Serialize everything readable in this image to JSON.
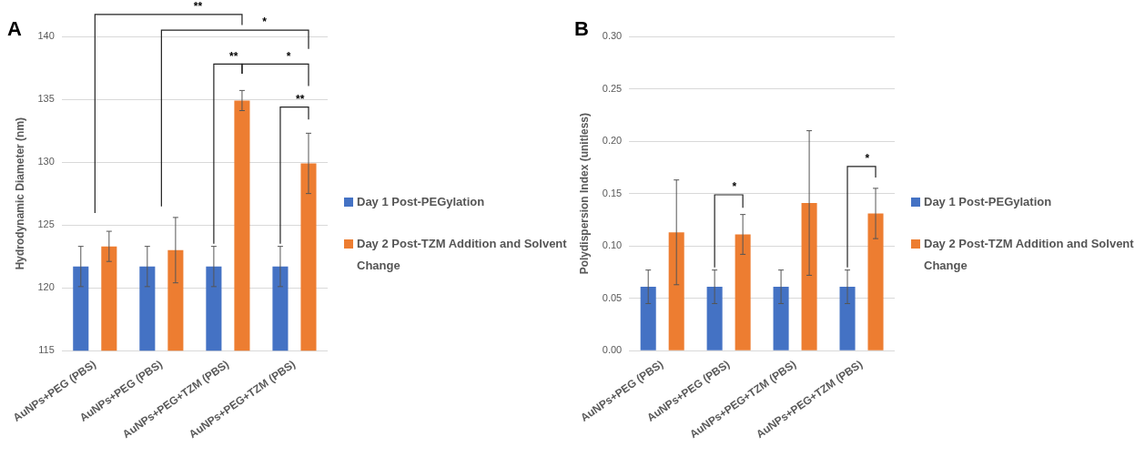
{
  "chart_data": [
    {
      "type": "bar",
      "title": "A",
      "ylabel": "Hydrodynamic Diameter (nm)",
      "categories": [
        "AuNPs+PEG (PBS)",
        "AuNPs+PEG (PBS)",
        "AuNPs+PEG+TZM (PBS)",
        "AuNPs+PEG+TZM (PBS)"
      ],
      "series": [
        {
          "name": "Day 1 Post-PEGylation",
          "color": "#4472c4",
          "values": [
            121.7,
            121.7,
            121.7,
            121.7
          ],
          "errors": [
            1.6,
            1.6,
            1.6,
            1.6
          ]
        },
        {
          "name": "Day 2 Post-TZM Addition and Solvent Change",
          "color": "#ed7d31",
          "values": [
            123.3,
            123.0,
            134.9,
            129.9
          ],
          "errors": [
            1.2,
            2.6,
            0.8,
            2.4
          ]
        }
      ],
      "ylim": [
        115,
        140
      ],
      "yticks": [
        115,
        120,
        125,
        130,
        135,
        140
      ],
      "grid": "y",
      "legend": "right",
      "annotations": [
        "**",
        "*",
        "**",
        "*",
        "**"
      ]
    },
    {
      "type": "bar",
      "title": "B",
      "ylabel": "Polydispersion Index (unitless)",
      "categories": [
        "AuNPs+PEG (PBS)",
        "AuNPs+PEG (PBS)",
        "AuNPs+PEG+TZM (PBS)",
        "AuNPs+PEG+TZM (PBS)"
      ],
      "series": [
        {
          "name": "Day 1 Post-PEGylation",
          "color": "#4472c4",
          "values": [
            0.061,
            0.061,
            0.061,
            0.061
          ],
          "errors": [
            0.016,
            0.016,
            0.016,
            0.016
          ]
        },
        {
          "name": "Day 2 Post-TZM Addition and Solvent Change",
          "color": "#ed7d31",
          "values": [
            0.113,
            0.111,
            0.141,
            0.131
          ],
          "errors": [
            0.05,
            0.019,
            0.069,
            0.024
          ]
        }
      ],
      "ylim": [
        0,
        0.3
      ],
      "yticks": [
        {
          "value": 0,
          "label": "0.00"
        },
        {
          "value": 0.05,
          "label": "0.05"
        },
        {
          "value": 0.1,
          "label": "0.10"
        },
        {
          "value": 0.15,
          "label": "0.15"
        },
        {
          "value": 0.2,
          "label": "0.20"
        },
        {
          "value": 0.25,
          "label": "0.25"
        },
        {
          "value": 0.3,
          "label": "0.30"
        }
      ],
      "grid": "y",
      "legend": "right",
      "annotations": [
        "*",
        "*"
      ]
    }
  ]
}
